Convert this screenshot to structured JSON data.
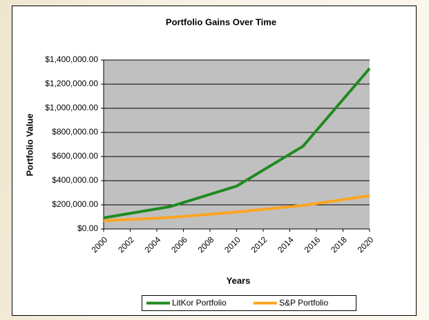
{
  "chart_data": {
    "type": "line",
    "title": "Portfolio Gains Over Time",
    "x_label": "Years",
    "y_label": "Portfolio Value",
    "x": [
      2000,
      2005,
      2010,
      2015,
      2020
    ],
    "series": [
      {
        "name": "LitKor Portfolio",
        "color": "#1f8a1f",
        "values": [
          92000,
          185000,
          355000,
          686000,
          1330000
        ]
      },
      {
        "name": "S&P Portfolio",
        "color": "#ffa51f",
        "values": [
          68000,
          95000,
          140000,
          195000,
          275000
        ]
      }
    ],
    "xlim": [
      2000,
      2020
    ],
    "xticks": [
      2000,
      2002,
      2004,
      2006,
      2008,
      2010,
      2012,
      2014,
      2016,
      2018,
      2020
    ],
    "ylim": [
      0,
      1400000
    ],
    "yticks": [
      {
        "value": 0,
        "label": "$0.00"
      },
      {
        "value": 200000,
        "label": "$200,000.00"
      },
      {
        "value": 400000,
        "label": "$400,000.00"
      },
      {
        "value": 600000,
        "label": "$600,000.00"
      },
      {
        "value": 800000,
        "label": "$800,000.00"
      },
      {
        "value": 1000000,
        "label": "$1,000,000.00"
      },
      {
        "value": 1200000,
        "label": "$1,200,000.00"
      },
      {
        "value": 1400000,
        "label": "$1,400,000.00"
      }
    ],
    "grid": true,
    "legend": "bottom"
  }
}
